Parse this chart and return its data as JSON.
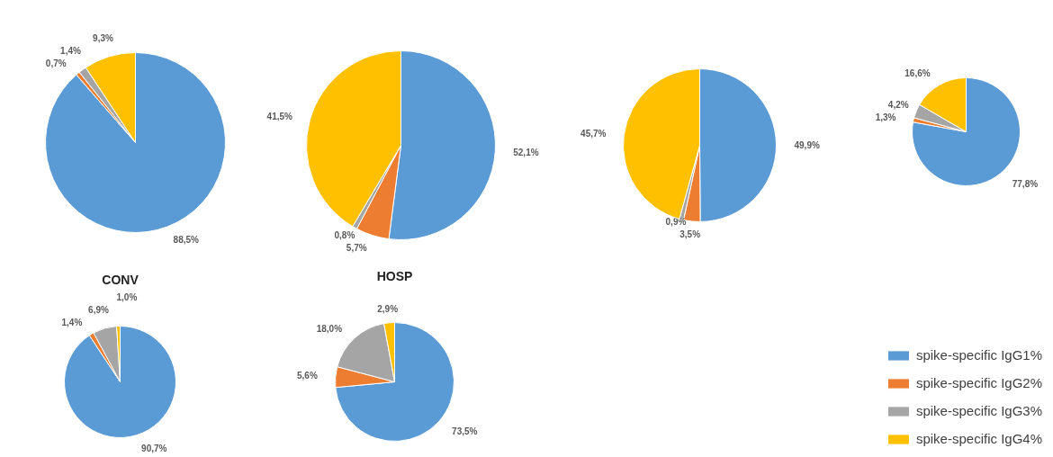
{
  "chart_data": [
    {
      "type": "pie",
      "categories": [
        "spike-specific IgG1%",
        "spike-specific IgG2%",
        "spike-specific IgG3%",
        "spike-specific IgG4%"
      ],
      "values": [
        88.5,
        0.7,
        1.4,
        9.3
      ],
      "value_labels": [
        "88,5%",
        "0,7%",
        "1,4%",
        "9,3%"
      ],
      "colors": [
        "#5b9bd5",
        "#ed7d31",
        "#a5a5a5",
        "#ffc000"
      ],
      "legend": "bottom right"
    },
    {
      "type": "pie",
      "categories": [
        null,
        null,
        null,
        null
      ],
      "values": [
        52.1,
        5.7,
        0.8,
        41.5
      ],
      "value_labels": [
        "52,1%",
        "5,7%",
        "0,8%",
        "41,5%"
      ],
      "colors": [
        "#5b9bd5",
        "#ed7d31",
        "#a5a5a5",
        "#ffc000"
      ]
    },
    {
      "type": "pie",
      "categories": [
        null,
        null,
        null,
        null
      ],
      "values": [
        49.9,
        3.5,
        0.9,
        45.7
      ],
      "value_labels": [
        "49,9%",
        "3,5%",
        "0,9%",
        "45,7%"
      ],
      "colors": [
        "#5b9bd5",
        "#ed7d31",
        "#a5a5a5",
        "#ffc000"
      ]
    },
    {
      "type": "pie",
      "categories": [
        null,
        null,
        null,
        null
      ],
      "values": [
        77.8,
        1.3,
        4.2,
        16.6
      ],
      "value_labels": [
        "77,8%",
        "1,3%",
        "4,2%",
        "16,6%"
      ],
      "colors": [
        "#5b9bd5",
        "#ed7d31",
        "#a5a5a5",
        "#ffc000"
      ]
    },
    {
      "type": "pie",
      "title": "CONV",
      "categories": [
        null,
        null,
        null,
        null
      ],
      "values": [
        90.7,
        1.4,
        6.9,
        1.0
      ],
      "value_labels": [
        "90,7%",
        "1,4%",
        "6,9%",
        "1,0%"
      ],
      "colors": [
        "#5b9bd5",
        "#ed7d31",
        "#a5a5a5",
        "#ffc000"
      ]
    },
    {
      "type": "pie",
      "title": "HOSP",
      "categories": [
        null,
        null,
        null,
        null
      ],
      "values": [
        73.5,
        5.6,
        18.0,
        2.9
      ],
      "value_labels": [
        "73,5%",
        "5,6%",
        "18,0%",
        "2,9%"
      ],
      "colors": [
        "#5b9bd5",
        "#ed7d31",
        "#a5a5a5",
        "#ffc000"
      ]
    }
  ]
}
